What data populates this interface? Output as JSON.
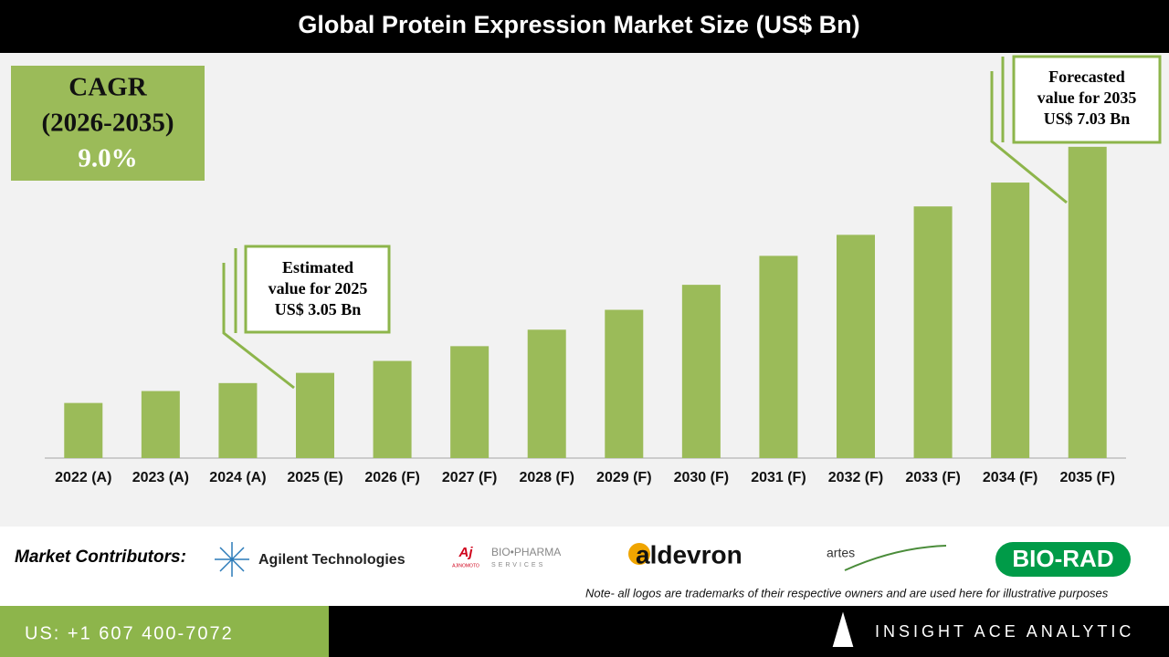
{
  "chart_data": {
    "type": "bar",
    "title": "Global Protein Expression Market Size (US$ Bn)",
    "categories": [
      "2022 (A)",
      "2023 (A)",
      "2024 (A)",
      "2025 (E)",
      "2026 (F)",
      "2027 (F)",
      "2028 (F)",
      "2029 (F)",
      "2030 (F)",
      "2031 (F)",
      "2032 (F)",
      "2033 (F)",
      "2034 (F)",
      "2035 (F)"
    ],
    "values": [
      2.52,
      2.73,
      2.87,
      3.05,
      3.26,
      3.52,
      3.81,
      4.16,
      4.6,
      5.11,
      5.48,
      5.98,
      6.4,
      7.03
    ],
    "color": "#9bbb59",
    "ylim": [
      1.55,
      8.65
    ],
    "cagr": [
      "CAGR",
      "(2026-2035)",
      "9.0%"
    ],
    "annotations": [
      {
        "lines": [
          "Estimated",
          "value for 2025",
          "US$ 3.05 Bn"
        ]
      },
      {
        "lines": [
          "Forecasted",
          "value for 2035",
          "US$ 7.03 Bn"
        ]
      }
    ]
  },
  "contributors": {
    "label": "Market Contributors:",
    "logos": [
      "Agilent Technologies",
      "Aj",
      "AJINOMOTO",
      "BIO•PHARMA",
      "SERVICES",
      "aldevron",
      "artes",
      "BIO-RAD"
    ],
    "note": "Note- all logos are trademarks of their respective owners and are used here for illustrative purposes"
  },
  "footer": {
    "phone": "US: +1 607 400-7072",
    "brand": "INSIGHT ACE ANALYTIC"
  }
}
